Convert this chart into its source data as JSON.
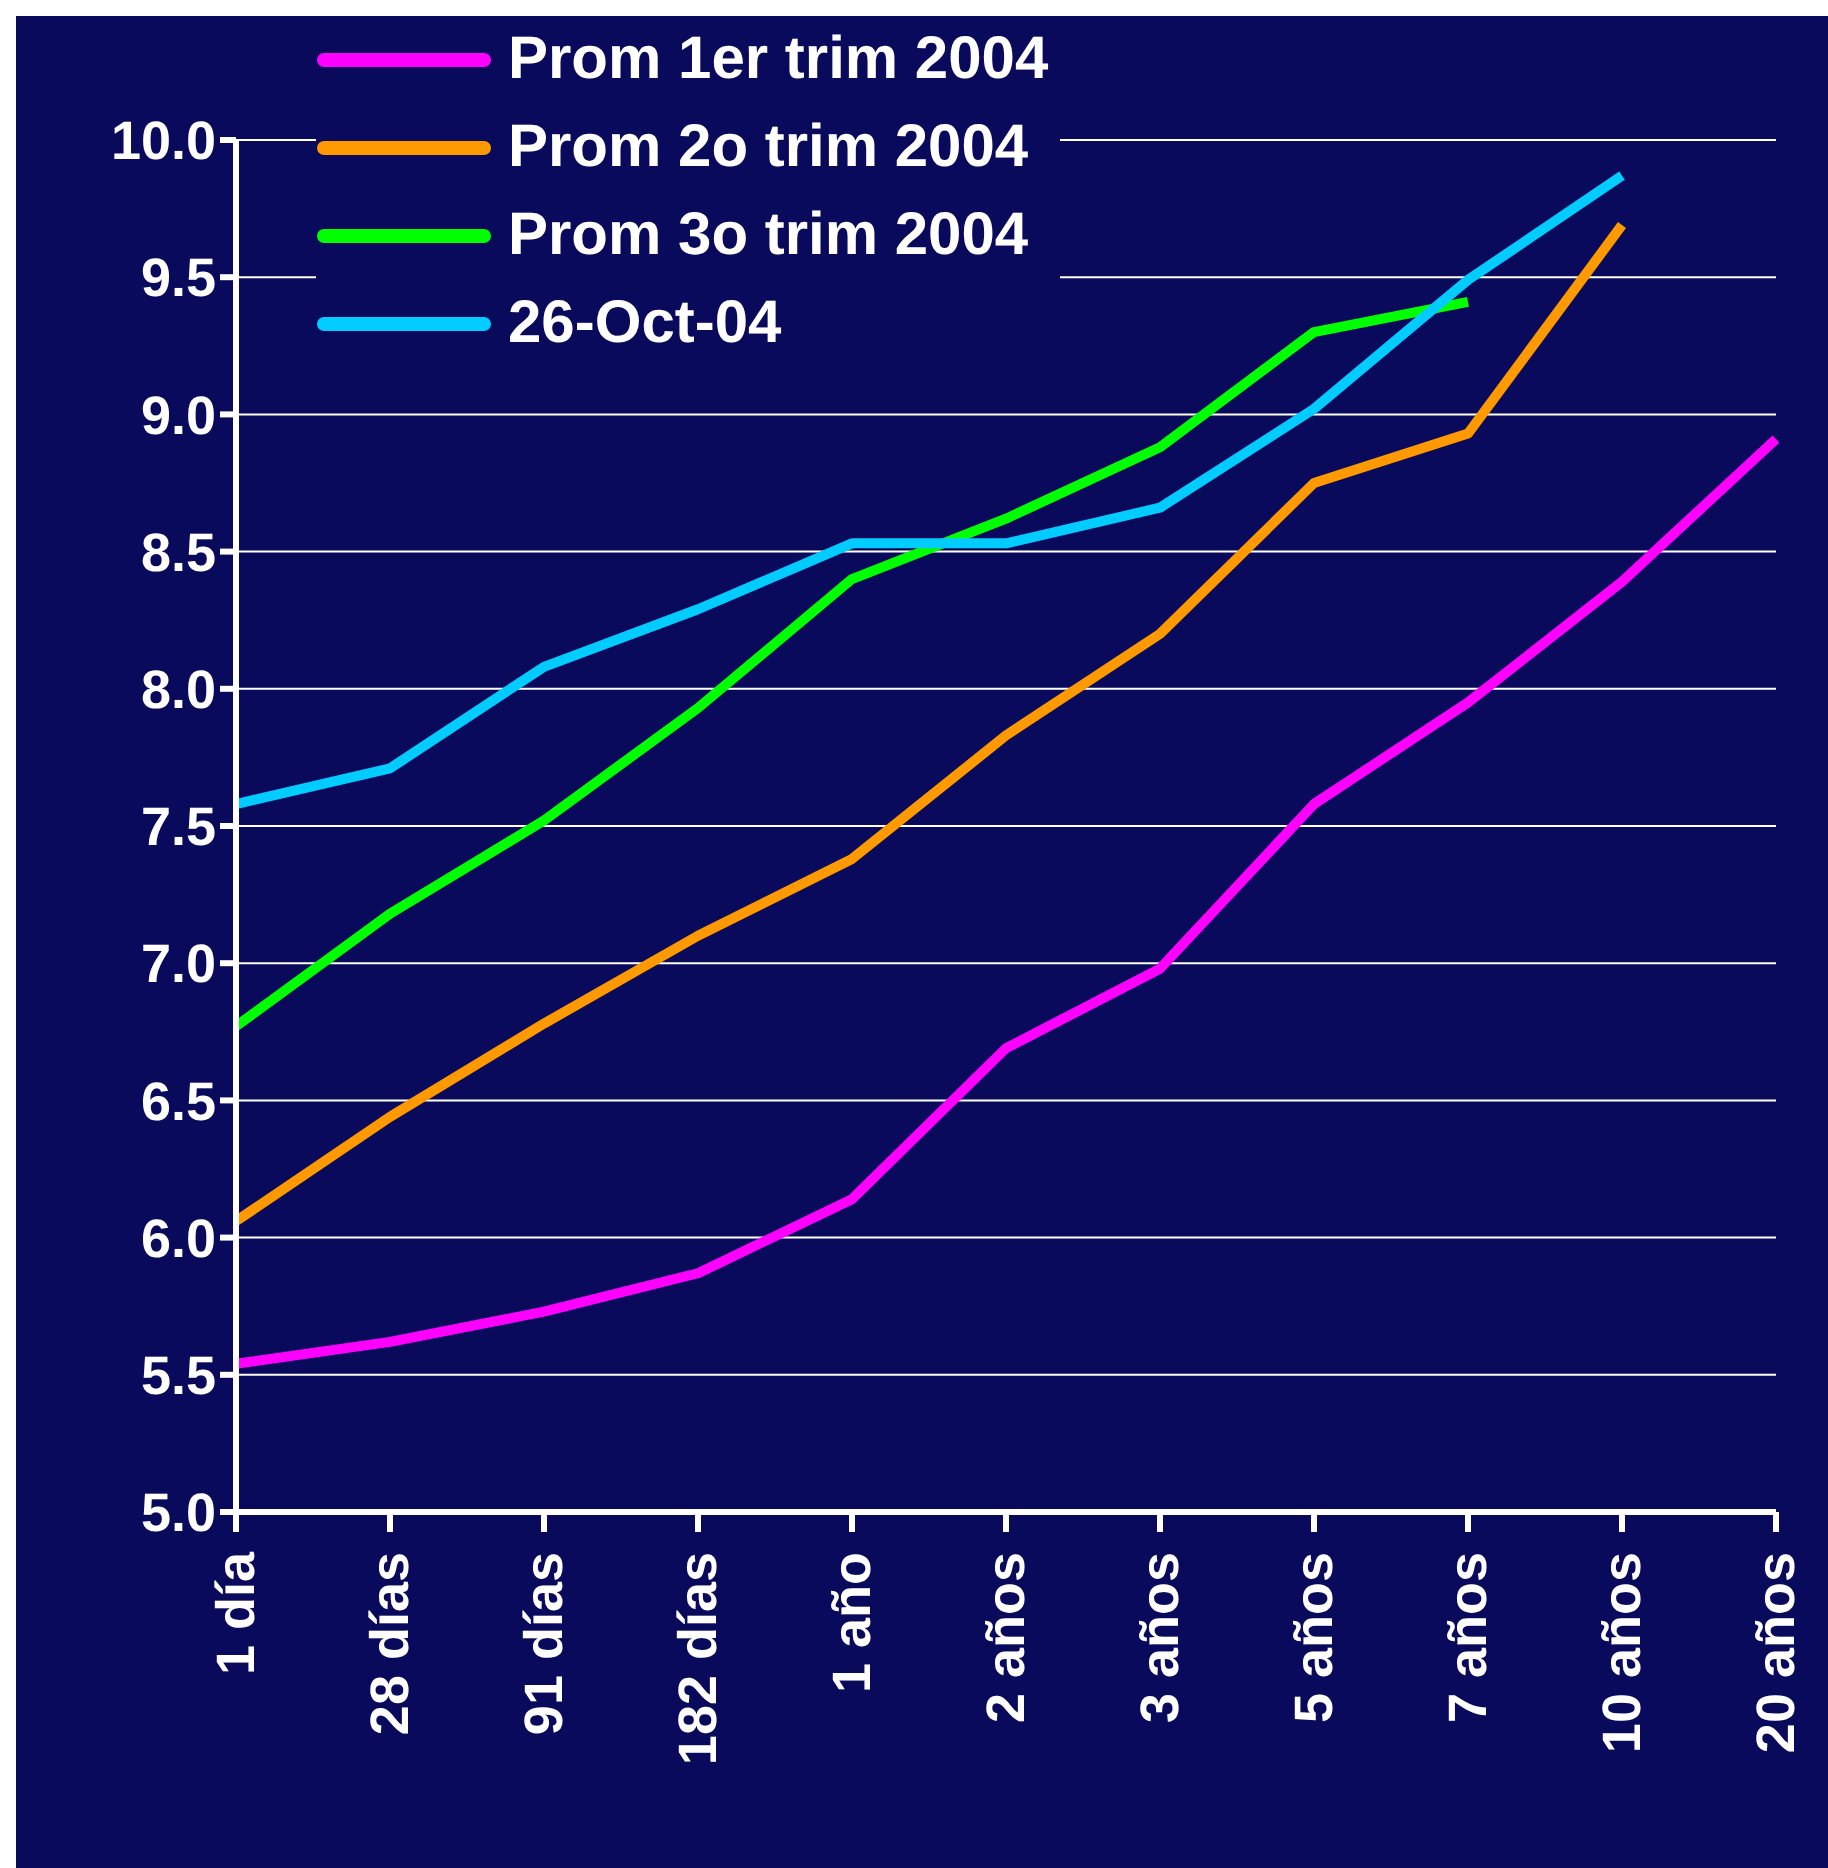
{
  "chart_data": {
    "type": "line",
    "categories": [
      "1 día",
      "28 días",
      "91 días",
      "182 días",
      "1 año",
      "2 años",
      "3 años",
      "5 años",
      "7 años",
      "10 años",
      "20 años"
    ],
    "series": [
      {
        "name": "Prom 1er trim 2004",
        "color": "#ff00ff",
        "values": [
          5.54,
          5.62,
          5.73,
          5.87,
          6.14,
          6.69,
          6.98,
          7.58,
          7.95,
          8.39,
          8.91
        ]
      },
      {
        "name": "Prom 2o trim 2004",
        "color": "#ff9900",
        "values": [
          6.06,
          6.44,
          6.78,
          7.1,
          7.38,
          7.83,
          8.2,
          8.75,
          8.93,
          9.69,
          null
        ]
      },
      {
        "name": "Prom 3o trim 2004",
        "color": "#00ff00",
        "values": [
          6.77,
          7.18,
          7.52,
          7.93,
          8.4,
          8.62,
          8.88,
          9.3,
          9.41,
          null,
          null
        ]
      },
      {
        "name": "26-Oct-04",
        "color": "#00ccff",
        "values": [
          7.58,
          7.71,
          8.08,
          8.29,
          8.53,
          8.53,
          8.66,
          9.02,
          9.49,
          9.87,
          null
        ]
      }
    ],
    "ylim": [
      5,
      10
    ],
    "yticks": [
      {
        "value": 5,
        "label": "5.0"
      },
      {
        "value": 5.5,
        "label": "5.5"
      },
      {
        "value": 6,
        "label": "6.0"
      },
      {
        "value": 6.5,
        "label": "6.5"
      },
      {
        "value": 7,
        "label": "7.0"
      },
      {
        "value": 7.5,
        "label": "7.5"
      },
      {
        "value": 8,
        "label": "8.0"
      },
      {
        "value": 8.5,
        "label": "8.5"
      },
      {
        "value": 9,
        "label": "9.0"
      },
      {
        "value": 9.5,
        "label": "9.5"
      },
      {
        "value": 10,
        "label": "10.0"
      }
    ],
    "grid": "y",
    "legend": "top left",
    "marker": "none",
    "line_style": "solid"
  }
}
